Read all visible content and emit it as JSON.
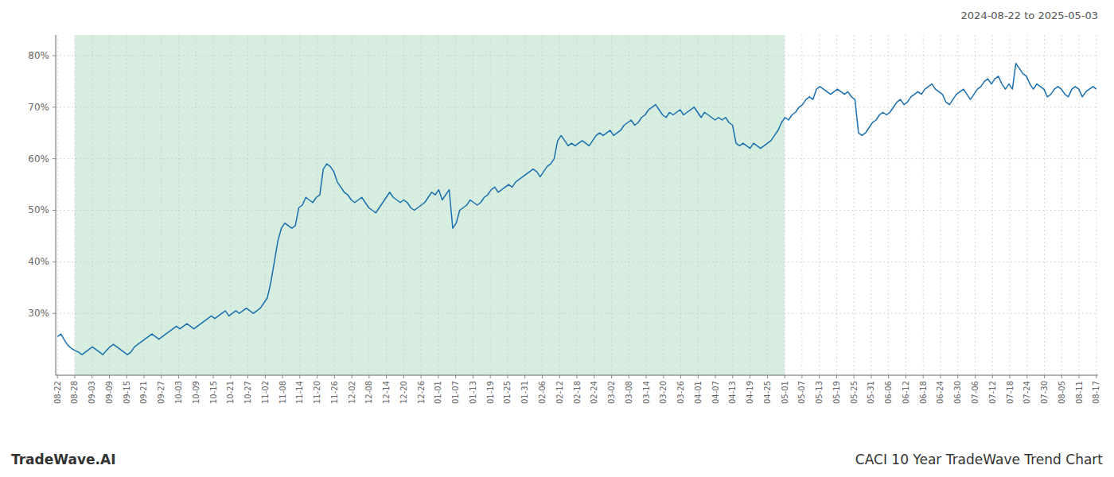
{
  "chart_data": {
    "type": "line",
    "title": "CACI 10 Year TradeWave Trend Chart",
    "subtitle": "2024-08-22 to 2025-05-03",
    "annotations": [
      "TradeWave.AI"
    ],
    "color": "#1a6faf",
    "grid": true,
    "xlim": [
      -0.5,
      297.5
    ],
    "xticks": [
      {
        "value": 0,
        "label": "08-22"
      },
      {
        "value": 4.95,
        "label": "08-28"
      },
      {
        "value": 9.9,
        "label": "09-03"
      },
      {
        "value": 14.85,
        "label": "09-09"
      },
      {
        "value": 19.8,
        "label": "09-15"
      },
      {
        "value": 24.75,
        "label": "09-21"
      },
      {
        "value": 29.7,
        "label": "09-27"
      },
      {
        "value": 34.65,
        "label": "10-03"
      },
      {
        "value": 39.6,
        "label": "10-09"
      },
      {
        "value": 44.55,
        "label": "10-15"
      },
      {
        "value": 49.5,
        "label": "10-21"
      },
      {
        "value": 54.45,
        "label": "10-27"
      },
      {
        "value": 59.4,
        "label": "11-02"
      },
      {
        "value": 64.35,
        "label": "11-08"
      },
      {
        "value": 69.3,
        "label": "11-14"
      },
      {
        "value": 74.25,
        "label": "11-20"
      },
      {
        "value": 79.2,
        "label": "11-26"
      },
      {
        "value": 84.15,
        "label": "12-02"
      },
      {
        "value": 89.1,
        "label": "12-08"
      },
      {
        "value": 94.05,
        "label": "12-14"
      },
      {
        "value": 99,
        "label": "12-20"
      },
      {
        "value": 103.95,
        "label": "12-26"
      },
      {
        "value": 108.9,
        "label": "01-01"
      },
      {
        "value": 113.85,
        "label": "01-07"
      },
      {
        "value": 118.8,
        "label": "01-13"
      },
      {
        "value": 123.75,
        "label": "01-19"
      },
      {
        "value": 128.7,
        "label": "01-25"
      },
      {
        "value": 133.65,
        "label": "01-31"
      },
      {
        "value": 138.6,
        "label": "02-06"
      },
      {
        "value": 143.55,
        "label": "02-12"
      },
      {
        "value": 148.5,
        "label": "02-18"
      },
      {
        "value": 153.45,
        "label": "02-24"
      },
      {
        "value": 158.4,
        "label": "03-02"
      },
      {
        "value": 163.35,
        "label": "03-08"
      },
      {
        "value": 168.3,
        "label": "03-14"
      },
      {
        "value": 173.25,
        "label": "03-20"
      },
      {
        "value": 178.2,
        "label": "03-26"
      },
      {
        "value": 183.15,
        "label": "04-01"
      },
      {
        "value": 188.1,
        "label": "04-07"
      },
      {
        "value": 193.05,
        "label": "04-13"
      },
      {
        "value": 198,
        "label": "04-19"
      },
      {
        "value": 202.95,
        "label": "04-25"
      },
      {
        "value": 207.9,
        "label": "05-01"
      },
      {
        "value": 212.85,
        "label": "05-07"
      },
      {
        "value": 217.8,
        "label": "05-13"
      },
      {
        "value": 222.75,
        "label": "05-19"
      },
      {
        "value": 227.7,
        "label": "05-25"
      },
      {
        "value": 232.65,
        "label": "05-31"
      },
      {
        "value": 237.6,
        "label": "06-06"
      },
      {
        "value": 242.55,
        "label": "06-12"
      },
      {
        "value": 247.5,
        "label": "06-18"
      },
      {
        "value": 252.45,
        "label": "06-24"
      },
      {
        "value": 257.4,
        "label": "06-30"
      },
      {
        "value": 262.35,
        "label": "07-06"
      },
      {
        "value": 267.3,
        "label": "07-12"
      },
      {
        "value": 272.25,
        "label": "07-18"
      },
      {
        "value": 277.2,
        "label": "07-24"
      },
      {
        "value": 282.15,
        "label": "07-30"
      },
      {
        "value": 287.1,
        "label": "08-05"
      },
      {
        "value": 292.05,
        "label": "08-11"
      },
      {
        "value": 297,
        "label": "08-17"
      }
    ],
    "ylim": [
      18,
      84
    ],
    "yticks": [
      {
        "value": 30,
        "label": "30%"
      },
      {
        "value": 40,
        "label": "40%"
      },
      {
        "value": 50,
        "label": "50%"
      },
      {
        "value": 60,
        "label": "60%"
      },
      {
        "value": 70,
        "label": "70%"
      },
      {
        "value": 80,
        "label": "80%"
      }
    ],
    "shaded_span": {
      "start": 4.95,
      "end": 207.9,
      "color": "#d6ede0"
    },
    "values": [
      25.5,
      26.0,
      24.8,
      23.8,
      23.2,
      22.8,
      22.5,
      22.0,
      22.5,
      23.0,
      23.5,
      23.0,
      22.5,
      22.0,
      22.8,
      23.5,
      24.0,
      23.5,
      23.0,
      22.5,
      22.0,
      22.5,
      23.5,
      24.0,
      24.5,
      25.0,
      25.5,
      26.0,
      25.5,
      25.0,
      25.5,
      26.0,
      26.5,
      27.0,
      27.5,
      27.0,
      27.5,
      28.0,
      27.5,
      27.0,
      27.5,
      28.0,
      28.5,
      29.0,
      29.5,
      29.0,
      29.5,
      30.0,
      30.5,
      29.5,
      30.0,
      30.5,
      30.0,
      30.5,
      31.0,
      30.5,
      30.0,
      30.5,
      31.0,
      32.0,
      33.0,
      36.0,
      40.0,
      44.0,
      46.5,
      47.5,
      47.0,
      46.5,
      47.0,
      50.5,
      51.0,
      52.5,
      52.0,
      51.5,
      52.5,
      53.0,
      58.0,
      59.0,
      58.5,
      57.5,
      55.5,
      54.5,
      53.5,
      53.0,
      52.0,
      51.5,
      52.0,
      52.5,
      51.5,
      50.5,
      50.0,
      49.5,
      50.5,
      51.5,
      52.5,
      53.5,
      52.5,
      52.0,
      51.5,
      52.0,
      51.5,
      50.5,
      50.0,
      50.5,
      51.0,
      51.5,
      52.5,
      53.5,
      53.0,
      54.0,
      52.0,
      53.0,
      54.0,
      46.5,
      47.5,
      50.0,
      50.5,
      51.0,
      52.0,
      51.5,
      51.0,
      51.5,
      52.5,
      53.0,
      54.0,
      54.5,
      53.5,
      54.0,
      54.5,
      55.0,
      54.5,
      55.5,
      56.0,
      56.5,
      57.0,
      57.5,
      58.0,
      57.5,
      56.5,
      57.5,
      58.5,
      59.0,
      60.0,
      63.5,
      64.5,
      63.5,
      62.5,
      63.0,
      62.5,
      63.0,
      63.5,
      63.0,
      62.5,
      63.5,
      64.5,
      65.0,
      64.5,
      65.0,
      65.5,
      64.5,
      65.0,
      65.5,
      66.5,
      67.0,
      67.5,
      66.5,
      67.0,
      68.0,
      68.5,
      69.5,
      70.0,
      70.5,
      69.5,
      68.5,
      68.0,
      69.0,
      68.5,
      69.0,
      69.5,
      68.5,
      69.0,
      69.5,
      70.0,
      69.0,
      68.0,
      69.0,
      68.5,
      68.0,
      67.5,
      68.0,
      67.5,
      68.0,
      67.0,
      66.5,
      63.0,
      62.5,
      63.0,
      62.5,
      62.0,
      63.0,
      62.5,
      62.0,
      62.5,
      63.0,
      63.5,
      64.5,
      65.5,
      67.0,
      68.0,
      67.5,
      68.5,
      69.0,
      70.0,
      70.5,
      71.5,
      72.0,
      71.5,
      73.5,
      74.0,
      73.5,
      73.0,
      72.5,
      73.0,
      73.5,
      73.0,
      72.5,
      73.0,
      72.0,
      71.5,
      65.0,
      64.5,
      65.0,
      66.0,
      67.0,
      67.5,
      68.5,
      69.0,
      68.5,
      69.0,
      70.0,
      71.0,
      71.5,
      70.5,
      71.0,
      72.0,
      72.5,
      73.0,
      72.5,
      73.5,
      74.0,
      74.5,
      73.5,
      73.0,
      72.5,
      71.0,
      70.5,
      71.5,
      72.5,
      73.0,
      73.5,
      72.5,
      71.5,
      72.5,
      73.5,
      74.0,
      75.0,
      75.5,
      74.5,
      75.5,
      76.0,
      74.5,
      73.5,
      74.5,
      73.5,
      78.5,
      77.5,
      76.5,
      76.0,
      74.5,
      73.5,
      74.5,
      74.0,
      73.5,
      72.0,
      72.5,
      73.5,
      74.0,
      73.5,
      72.5,
      72.0,
      73.5,
      74.0,
      73.5,
      72.0,
      73.0,
      73.5,
      74.0,
      73.5
    ]
  }
}
